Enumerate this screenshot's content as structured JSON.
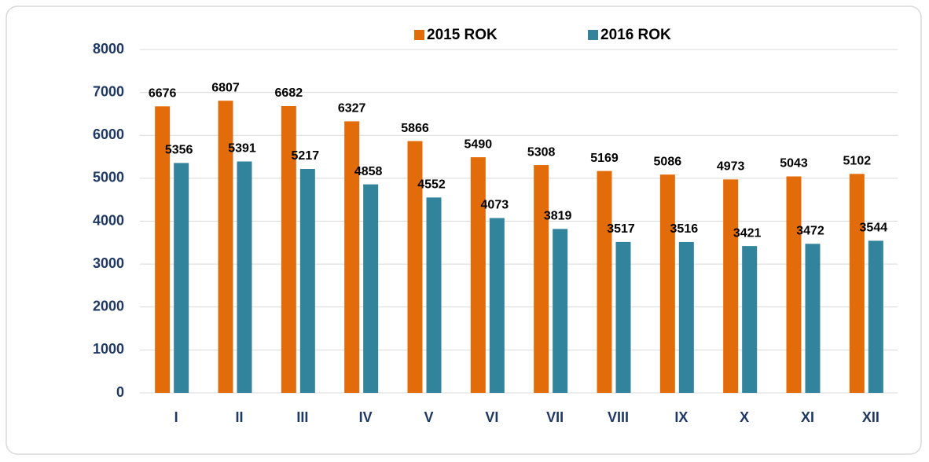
{
  "chart_data": {
    "type": "bar",
    "categories": [
      "I",
      "II",
      "III",
      "IV",
      "V",
      "VI",
      "VII",
      "VIII",
      "IX",
      "X",
      "XI",
      "XII"
    ],
    "series": [
      {
        "name": "2015 ROK",
        "color": "#e36c0a",
        "values": [
          6676,
          6807,
          6682,
          6327,
          5866,
          5490,
          5308,
          5169,
          5086,
          4973,
          5043,
          5102
        ]
      },
      {
        "name": "2016 ROK",
        "color": "#31849b",
        "values": [
          5356,
          5391,
          5217,
          4858,
          4552,
          4073,
          3819,
          3517,
          3516,
          3421,
          3472,
          3544
        ]
      }
    ],
    "ylim": [
      0,
      8000
    ],
    "yticks": [
      0,
      1000,
      2000,
      3000,
      4000,
      5000,
      6000,
      7000,
      8000
    ],
    "grid": true,
    "legend": "top"
  }
}
